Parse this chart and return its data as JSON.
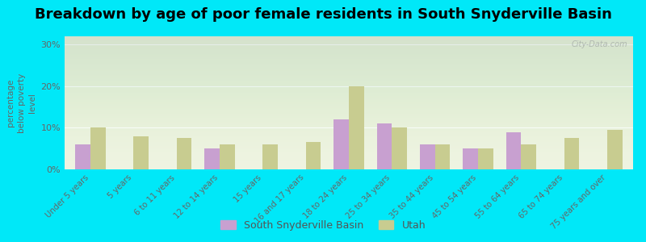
{
  "title": "Breakdown by age of poor female residents in South Snyderville Basin",
  "categories": [
    "Under 5 years",
    "5 years",
    "6 to 11 years",
    "12 to 14 years",
    "15 years",
    "16 and 17 years",
    "18 to 24 years",
    "25 to 34 years",
    "35 to 44 years",
    "45 to 54 years",
    "55 to 64 years",
    "65 to 74 years",
    "75 years and over"
  ],
  "ssb_values": [
    6.0,
    0.0,
    0.0,
    5.0,
    0.0,
    0.0,
    12.0,
    11.0,
    6.0,
    5.0,
    9.0,
    0.0,
    0.0
  ],
  "utah_values": [
    10.0,
    8.0,
    7.5,
    6.0,
    6.0,
    6.5,
    20.0,
    10.0,
    6.0,
    5.0,
    6.0,
    7.5,
    9.5
  ],
  "ssb_color": "#c8a0d0",
  "utah_color": "#c8cc90",
  "ylabel": "percentage\nbelow poverty\nlevel",
  "yticks": [
    0,
    10,
    20,
    30
  ],
  "ytick_labels": [
    "0%",
    "10%",
    "20%",
    "30%"
  ],
  "ylim": [
    0,
    32
  ],
  "plot_bg": "#eef3e0",
  "outer_bg": "#00e8f8",
  "title_fontsize": 13,
  "legend_label_ssb": "South Snyderville Basin",
  "legend_label_utah": "Utah",
  "watermark": "City-Data.com"
}
